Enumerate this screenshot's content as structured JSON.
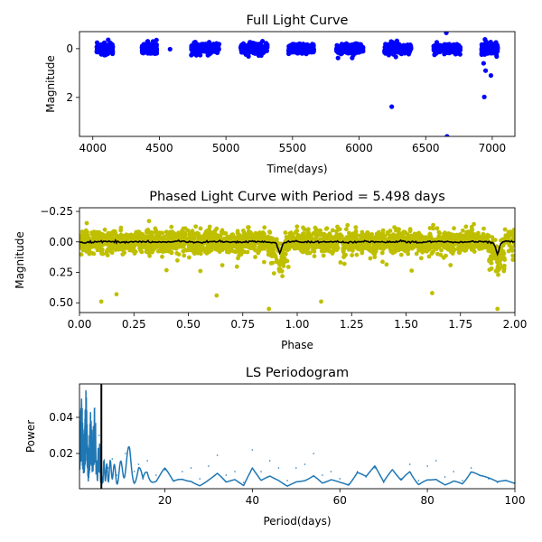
{
  "chart_data": [
    {
      "type": "scatter",
      "title": "Full Light Curve",
      "xlabel": "Time(days)",
      "ylabel": "Magnitude",
      "xlim": [
        3900,
        7170
      ],
      "ylim": [
        3.6,
        -0.7
      ],
      "y_inverted": true,
      "grid": false,
      "x_ticks": [
        4000,
        4500,
        5000,
        5500,
        6000,
        6500,
        7000
      ],
      "x_tick_labels": [
        "4000",
        "4500",
        "5000",
        "5500",
        "6000",
        "6500",
        "7000"
      ],
      "y_ticks": [
        0,
        2
      ],
      "y_tick_labels": [
        "0",
        "2"
      ],
      "point_color": "#0000ff",
      "observing_seasons": [
        {
          "start": 4030,
          "end": 4150
        },
        {
          "start": 4370,
          "end": 4480
        },
        {
          "start": 4740,
          "end": 4950
        },
        {
          "start": 5110,
          "end": 5310
        },
        {
          "start": 5470,
          "end": 5660
        },
        {
          "start": 5830,
          "end": 6030
        },
        {
          "start": 6190,
          "end": 6390
        },
        {
          "start": 6560,
          "end": 6760
        },
        {
          "start": 6920,
          "end": 7040
        }
      ],
      "outliers": [
        {
          "x": 4580,
          "y": 0.02
        },
        {
          "x": 6245,
          "y": 2.38
        },
        {
          "x": 6660,
          "y": 3.6
        },
        {
          "x": 6655,
          "y": -0.65
        },
        {
          "x": 6940,
          "y": 1.98
        },
        {
          "x": 6950,
          "y": 0.9
        },
        {
          "x": 6990,
          "y": 1.1
        },
        {
          "x": 6935,
          "y": 0.6
        }
      ]
    },
    {
      "type": "scatter",
      "title": "Phased Light Curve with Period = 5.498 days",
      "xlabel": "Phase",
      "ylabel": "Magnitude",
      "xlim": [
        0,
        2
      ],
      "ylim": [
        0.58,
        -0.28
      ],
      "y_inverted": true,
      "grid": false,
      "x_ticks": [
        0,
        0.25,
        0.5,
        0.75,
        1,
        1.25,
        1.5,
        1.75,
        2
      ],
      "x_tick_labels": [
        "0.00",
        "0.25",
        "0.50",
        "0.75",
        "1.00",
        "1.25",
        "1.50",
        "1.75",
        "2.00"
      ],
      "y_ticks": [
        -0.25,
        0,
        0.25,
        0.5
      ],
      "y_tick_labels": [
        "−0.25",
        "0.00",
        "0.25",
        "0.50"
      ],
      "point_color": "#bfbf00",
      "line_color": "#000000",
      "period_days": 5.498,
      "eclipses": [
        {
          "phase": 0.92,
          "depth": 0.09
        },
        {
          "phase": 1.92,
          "depth": 0.09
        }
      ],
      "outliers": [
        {
          "x": 0.1,
          "y": 0.49
        },
        {
          "x": 0.17,
          "y": 0.43
        },
        {
          "x": 0.87,
          "y": 0.55
        },
        {
          "x": 1.11,
          "y": 0.49
        },
        {
          "x": 1.92,
          "y": 0.55
        },
        {
          "x": 0.63,
          "y": 0.44
        },
        {
          "x": 1.62,
          "y": 0.42
        }
      ]
    },
    {
      "type": "line",
      "title": "LS Periodogram",
      "xlabel": "Period(days)",
      "ylabel": "Power",
      "xlim": [
        0.5,
        100
      ],
      "ylim": [
        0.0005,
        0.0585
      ],
      "grid": false,
      "x_ticks": [
        20,
        40,
        60,
        80,
        100
      ],
      "x_tick_labels": [
        "20",
        "40",
        "60",
        "80",
        "100"
      ],
      "y_ticks": [
        0.02,
        0.04
      ],
      "y_tick_labels": [
        "0.02",
        "0.04"
      ],
      "line_color": "#1f77b4",
      "marker_period": 5.498,
      "marker_color": "#000000",
      "x": [
        0.5,
        1.0,
        1.5,
        2.0,
        2.5,
        3.0,
        3.5,
        4.0,
        4.5,
        5.0,
        5.5,
        6.0,
        7.0,
        8.0,
        9.0,
        10.0,
        11.0,
        12.0,
        13.0,
        14.0,
        15.0,
        16.0,
        18.0,
        20.0,
        22.0,
        24.0,
        26.0,
        28.0,
        30.0,
        32.0,
        34.0,
        36.0,
        38.0,
        40.0,
        42.0,
        44.0,
        46.0,
        48.0,
        50.0,
        52.0,
        54.0,
        56.0,
        58.0,
        60.0,
        62.0,
        64.0,
        66.0,
        68.0,
        70.0,
        72.0,
        74.0,
        76.0,
        78.0,
        80.0,
        82.0,
        84.0,
        86.0,
        88.0,
        90.0,
        92.0,
        94.0,
        96.0,
        98.0,
        100.0
      ],
      "y": [
        0.03,
        0.047,
        0.02,
        0.053,
        0.012,
        0.04,
        0.025,
        0.045,
        0.01,
        0.03,
        0.004,
        0.015,
        0.012,
        0.017,
        0.008,
        0.015,
        0.02,
        0.022,
        0.01,
        0.014,
        0.006,
        0.016,
        0.008,
        0.011,
        0.005,
        0.01,
        0.012,
        0.006,
        0.013,
        0.019,
        0.008,
        0.01,
        0.004,
        0.022,
        0.01,
        0.016,
        0.012,
        0.005,
        0.012,
        0.014,
        0.02,
        0.008,
        0.01,
        0.006,
        0.003,
        0.01,
        0.007,
        0.012,
        0.004,
        0.011,
        0.006,
        0.014,
        0.005,
        0.013,
        0.016,
        0.007,
        0.01,
        0.005,
        0.012,
        0.008,
        0.006,
        0.004,
        0.005,
        0.004
      ]
    }
  ]
}
